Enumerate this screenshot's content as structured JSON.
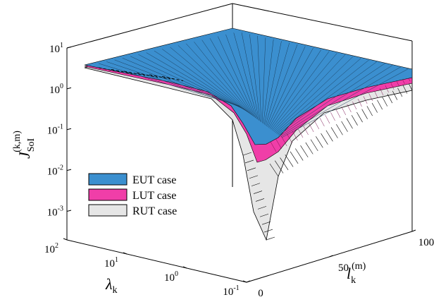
{
  "chart_data": {
    "type": "surface3d",
    "title": "",
    "zlabel": {
      "main": "J",
      "sub": "SoI",
      "sup": "(k,m)"
    },
    "xlabel": {
      "main": "λ",
      "sub": "k"
    },
    "ylabel": {
      "main": "l",
      "sub": "k",
      "sup": "(m)"
    },
    "z_scale": "log",
    "z_ticks": [
      {
        "base": "10",
        "exp": "1"
      },
      {
        "base": "10",
        "exp": "0"
      },
      {
        "base": "10",
        "exp": "-1"
      },
      {
        "base": "10",
        "exp": "-2"
      },
      {
        "base": "10",
        "exp": "-3"
      }
    ],
    "x_scale": "log",
    "x_ticks": [
      {
        "base": "10",
        "exp": "2"
      },
      {
        "base": "10",
        "exp": "1"
      },
      {
        "base": "10",
        "exp": "0"
      },
      {
        "base": "10",
        "exp": "-1"
      }
    ],
    "y_ticks": [
      "0",
      "50",
      "100"
    ],
    "zlim": [
      0.001,
      10
    ],
    "xlim": [
      0.1,
      100
    ],
    "ylim": [
      0,
      100
    ],
    "legend_placement": "left",
    "series": [
      {
        "name": "EUT case",
        "color": "#3b8fcf",
        "approx_min": 0.02
      },
      {
        "name": "LUT case",
        "color": "#f03ea8",
        "approx_min": 0.01
      },
      {
        "name": "RUT case",
        "color": "#e6e6e6",
        "approx_min": 0.0002
      }
    ],
    "surface_max": 3.5,
    "minimum_location": {
      "lambda": 0.1,
      "l": 0
    }
  }
}
